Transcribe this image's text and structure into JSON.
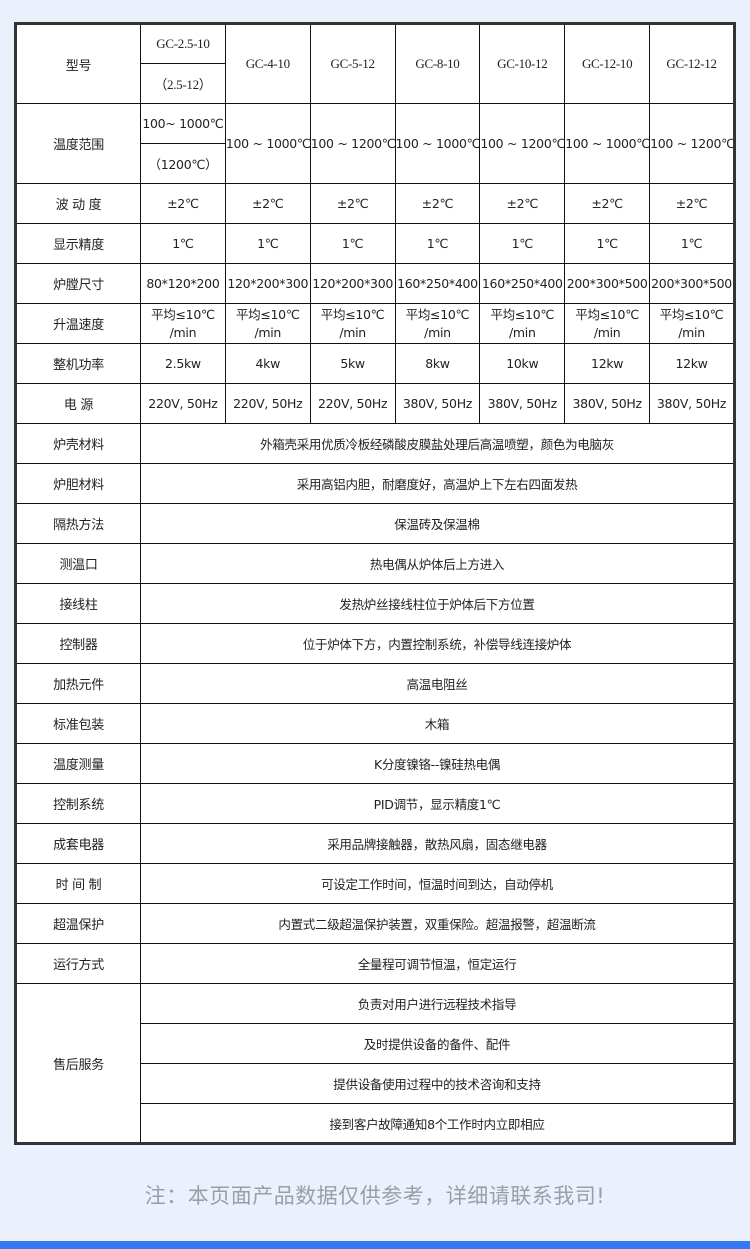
{
  "table": {
    "model_label": "型号",
    "models": [
      {
        "name": "GC-2.5-10",
        "alt": "（2.5-12）"
      },
      {
        "name": "GC-4-10"
      },
      {
        "name": "GC-5-12"
      },
      {
        "name": "GC-8-10"
      },
      {
        "name": "GC-10-12"
      },
      {
        "name": "GC-12-10"
      },
      {
        "name": "GC-12-12"
      }
    ],
    "temp_range": {
      "label": "温度范围",
      "first": "100~ 1000℃",
      "first_alt": "（1200℃）",
      "values": [
        "100 ~ 1000℃",
        "100 ~ 1200℃",
        "100 ~ 1000℃",
        "100 ~ 1200℃",
        "100 ~ 1000℃",
        "100 ~ 1200℃"
      ]
    },
    "per_model_rows": [
      {
        "label": "波 动 度",
        "values": [
          "±2℃",
          "±2℃",
          "±2℃",
          "±2℃",
          "±2℃",
          "±2℃",
          "±2℃"
        ]
      },
      {
        "label": "显示精度",
        "values": [
          "1℃",
          "1℃",
          "1℃",
          "1℃",
          "1℃",
          "1℃",
          "1℃"
        ]
      },
      {
        "label": "炉膛尺寸",
        "values": [
          "80*120*200",
          "120*200*300",
          "120*200*300",
          "160*250*400",
          "160*250*400",
          "200*300*500",
          "200*300*500"
        ]
      },
      {
        "label": "升温速度",
        "values": [
          "平均≤10℃ /min",
          "平均≤10℃ /min",
          "平均≤10℃ /min",
          "平均≤10℃ /min",
          "平均≤10℃ /min",
          "平均≤10℃ /min",
          "平均≤10℃ /min"
        ]
      },
      {
        "label": "整机功率",
        "values": [
          "2.5kw",
          "4kw",
          "5kw",
          "8kw",
          "10kw",
          "12kw",
          "12kw"
        ]
      },
      {
        "label": "电 源",
        "values": [
          "220V, 50Hz",
          "220V, 50Hz",
          "220V, 50Hz",
          "380V, 50Hz",
          "380V, 50Hz",
          "380V, 50Hz",
          "380V, 50Hz"
        ]
      }
    ],
    "shared_rows": [
      {
        "label": "炉壳材料",
        "value": "外箱壳采用优质冷板经磷酸皮膜盐处理后高温喷塑，颜色为电脑灰"
      },
      {
        "label": "炉胆材料",
        "value": "采用高铝内胆，耐磨度好，高温炉上下左右四面发热"
      },
      {
        "label": "隔热方法",
        "value": "保温砖及保温棉"
      },
      {
        "label": "测温口",
        "value": "热电偶从炉体后上方进入"
      },
      {
        "label": "接线柱",
        "value": "发热炉丝接线柱位于炉体后下方位置"
      },
      {
        "label": "控制器",
        "value": "位于炉体下方，内置控制系统，补偿导线连接炉体"
      },
      {
        "label": "加热元件",
        "value": "高温电阻丝"
      },
      {
        "label": "标准包装",
        "value": "木箱"
      },
      {
        "label": "温度测量",
        "value": "K分度镍铬--镍硅热电偶"
      },
      {
        "label": "控制系统",
        "value": "PID调节，显示精度1℃"
      },
      {
        "label": "成套电器",
        "value": "采用品牌接触器，散热风扇，固态继电器"
      },
      {
        "label": "时 间 制",
        "value": "可设定工作时间，恒温时间到达，自动停机"
      },
      {
        "label": "超温保护",
        "value": "内置式二级超温保护装置，双重保险。超温报警，超温断流"
      },
      {
        "label": "运行方式",
        "value": "全量程可调节恒温，恒定运行"
      }
    ],
    "after_sales": {
      "label": "售后服务",
      "items": [
        "负责对用户进行远程技术指导",
        "及时提供设备的备件、配件",
        "提供设备使用过程中的技术咨询和支持",
        "接到客户故障通知8个工作时内立即相应"
      ]
    }
  },
  "note": "注：本页面产品数据仅供参考，详细请联系我司!",
  "colors": {
    "background": "#eaf1fd",
    "bottom_bar": "#3478f6",
    "note_text": "#9a9ea6"
  }
}
